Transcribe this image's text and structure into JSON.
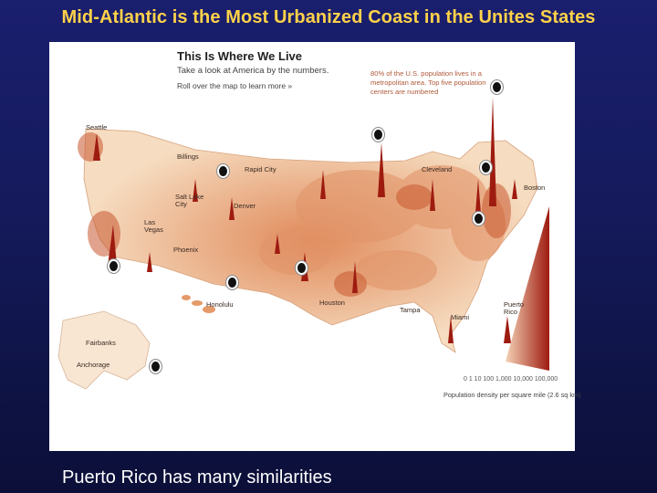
{
  "slide_title": "Mid-Atlantic is the Most Urbanized Coast in the Unites States",
  "caption": "Puerto Rico has many similarities",
  "map": {
    "header_title": "This Is Where We Live",
    "header_subtitle": "Take a look at America by the numbers.",
    "header_hint": "Roll over the map to learn more »",
    "note": "80% of the U.S. population lives in a metropolitan area. Top five population centers are numbered",
    "cities": {
      "seattle": "Seattle",
      "billings": "Billings",
      "rapid_city": "Rapid City",
      "cleveland": "Cleveland",
      "boston": "Boston",
      "salt_lake_city": "Salt Lake\nCity",
      "denver": "Denver",
      "las_vegas": "Las\nVegas",
      "phoenix": "Phoenix",
      "honolulu": "Honolulu",
      "houston": "Houston",
      "tampa": "Tampa",
      "miami": "Miami",
      "puerto_rico": "Puerto\nRico",
      "fairbanks": "Fairbanks",
      "anchorage": "Anchorage"
    },
    "legend_ticks": "0  1   10  100  1,000 10,000 100,000",
    "legend_label": "Population density per square mile (2.6 sq km)",
    "colors": {
      "low": "#f6dcc0",
      "mid": "#e59a6a",
      "high": "#b32a1a",
      "spike": "#9e1b10"
    }
  }
}
